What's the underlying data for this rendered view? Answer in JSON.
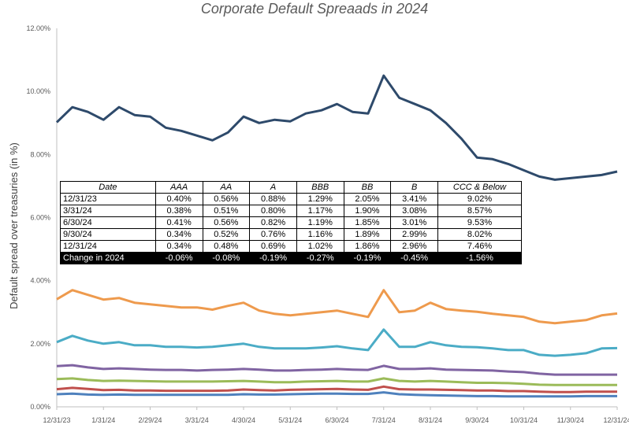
{
  "chart_data": {
    "type": "line",
    "title": "Corporate Default Spreaads in 2024",
    "ylabel": "Default spread over treasuries (in %)",
    "xlabel": "",
    "ylim": [
      0,
      12
    ],
    "yticks": [
      "0.00%",
      "2.00%",
      "4.00%",
      "6.00%",
      "8.00%",
      "10.00%",
      "12.00%"
    ],
    "xticks": [
      "12/31/23",
      "1/31/24",
      "2/29/24",
      "3/31/24",
      "4/30/24",
      "5/31/24",
      "6/30/24",
      "7/31/24",
      "8/31/24",
      "9/30/24",
      "10/31/24",
      "11/30/24",
      "12/31/24"
    ],
    "grid": false,
    "legend": "none",
    "series": [
      {
        "color": "#2e4a6b",
        "values": [
          9.02,
          9.5,
          9.35,
          9.1,
          9.5,
          9.25,
          9.2,
          8.85,
          8.75,
          8.6,
          8.45,
          8.7,
          9.2,
          9.0,
          9.1,
          9.05,
          9.3,
          9.4,
          9.6,
          9.35,
          9.3,
          10.5,
          9.8,
          9.6,
          9.4,
          9.0,
          8.5,
          7.9,
          7.85,
          7.7,
          7.5,
          7.3,
          7.2,
          7.25,
          7.3,
          7.35,
          7.46
        ]
      },
      {
        "color": "#ee9a4d",
        "values": [
          3.41,
          3.7,
          3.55,
          3.4,
          3.45,
          3.3,
          3.25,
          3.2,
          3.15,
          3.15,
          3.08,
          3.2,
          3.3,
          3.05,
          2.95,
          2.9,
          2.95,
          3.0,
          3.05,
          2.95,
          2.85,
          3.7,
          3.0,
          3.05,
          3.3,
          3.1,
          3.05,
          3.01,
          2.95,
          2.9,
          2.85,
          2.7,
          2.65,
          2.7,
          2.75,
          2.9,
          2.96
        ]
      },
      {
        "color": "#4bacc6",
        "values": [
          2.05,
          2.25,
          2.1,
          2.0,
          2.05,
          1.95,
          1.95,
          1.9,
          1.9,
          1.88,
          1.9,
          1.95,
          2.0,
          1.9,
          1.85,
          1.85,
          1.85,
          1.88,
          1.92,
          1.85,
          1.8,
          2.45,
          1.9,
          1.9,
          2.05,
          1.95,
          1.9,
          1.89,
          1.85,
          1.8,
          1.8,
          1.65,
          1.62,
          1.65,
          1.7,
          1.85,
          1.86
        ]
      },
      {
        "color": "#8064a2",
        "values": [
          1.29,
          1.32,
          1.25,
          1.2,
          1.22,
          1.2,
          1.18,
          1.17,
          1.17,
          1.15,
          1.17,
          1.18,
          1.2,
          1.18,
          1.15,
          1.15,
          1.17,
          1.18,
          1.2,
          1.18,
          1.17,
          1.3,
          1.2,
          1.2,
          1.22,
          1.18,
          1.17,
          1.16,
          1.15,
          1.12,
          1.1,
          1.05,
          1.02,
          1.02,
          1.02,
          1.02,
          1.02
        ]
      },
      {
        "color": "#9bbb59",
        "values": [
          0.88,
          0.9,
          0.85,
          0.82,
          0.83,
          0.82,
          0.81,
          0.8,
          0.8,
          0.8,
          0.8,
          0.81,
          0.82,
          0.8,
          0.78,
          0.78,
          0.8,
          0.81,
          0.82,
          0.8,
          0.8,
          0.9,
          0.82,
          0.8,
          0.82,
          0.8,
          0.78,
          0.76,
          0.76,
          0.75,
          0.73,
          0.7,
          0.69,
          0.69,
          0.69,
          0.69,
          0.69
        ]
      },
      {
        "color": "#c0504d",
        "values": [
          0.56,
          0.6,
          0.57,
          0.53,
          0.54,
          0.52,
          0.52,
          0.51,
          0.51,
          0.51,
          0.51,
          0.52,
          0.55,
          0.53,
          0.52,
          0.54,
          0.55,
          0.56,
          0.57,
          0.55,
          0.54,
          0.64,
          0.56,
          0.55,
          0.55,
          0.54,
          0.53,
          0.52,
          0.52,
          0.5,
          0.5,
          0.48,
          0.47,
          0.47,
          0.48,
          0.48,
          0.48
        ]
      },
      {
        "color": "#4f81bd",
        "values": [
          0.4,
          0.42,
          0.39,
          0.38,
          0.39,
          0.38,
          0.38,
          0.38,
          0.38,
          0.38,
          0.38,
          0.38,
          0.4,
          0.39,
          0.39,
          0.4,
          0.41,
          0.42,
          0.42,
          0.41,
          0.41,
          0.46,
          0.4,
          0.38,
          0.37,
          0.36,
          0.35,
          0.34,
          0.34,
          0.33,
          0.33,
          0.33,
          0.33,
          0.33,
          0.34,
          0.34,
          0.34
        ]
      }
    ]
  },
  "table": {
    "headers": [
      "Date",
      "AAA",
      "AA",
      "A",
      "BBB",
      "BB",
      "B",
      "CCC & Below"
    ],
    "rows": [
      [
        "12/31/23",
        "0.40%",
        "0.56%",
        "0.88%",
        "1.29%",
        "2.05%",
        "3.41%",
        "9.02%"
      ],
      [
        "3/31/24",
        "0.38%",
        "0.51%",
        "0.80%",
        "1.17%",
        "1.90%",
        "3.08%",
        "8.57%"
      ],
      [
        "6/30/24",
        "0.41%",
        "0.56%",
        "0.82%",
        "1.19%",
        "1.85%",
        "3.01%",
        "9.53%"
      ],
      [
        "9/30/24",
        "0.34%",
        "0.52%",
        "0.76%",
        "1.16%",
        "1.89%",
        "2.99%",
        "8.02%"
      ],
      [
        "12/31/24",
        "0.34%",
        "0.48%",
        "0.69%",
        "1.02%",
        "1.86%",
        "2.96%",
        "7.46%"
      ]
    ],
    "change": [
      "Change in 2024",
      "-0.06%",
      "-0.08%",
      "-0.19%",
      "-0.27%",
      "-0.19%",
      "-0.45%",
      "-1.56%"
    ]
  }
}
